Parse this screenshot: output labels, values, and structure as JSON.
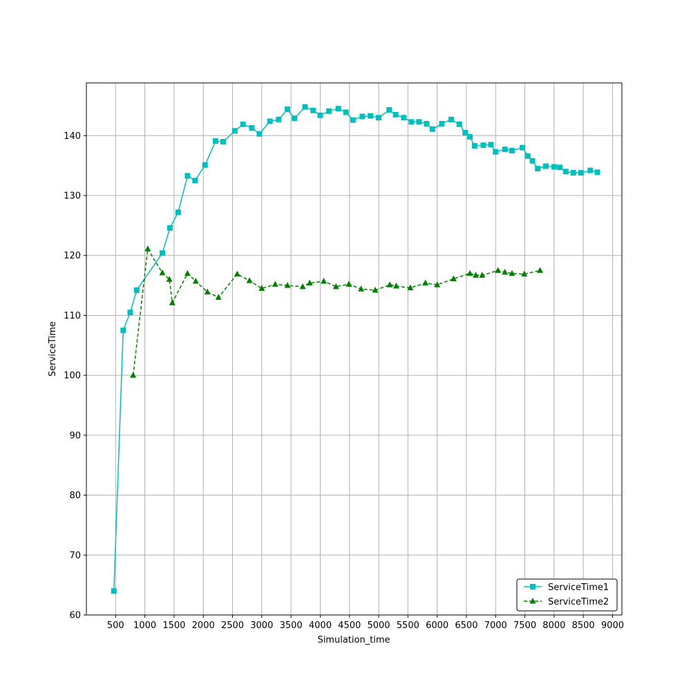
{
  "chart_data": {
    "type": "line",
    "title": "",
    "xlabel": "Simulation_time",
    "ylabel": "ServiceTime",
    "xlim": [
      0,
      9160
    ],
    "ylim": [
      60,
      148.8
    ],
    "xticks": [
      500,
      1000,
      1500,
      2000,
      2500,
      3000,
      3500,
      4000,
      4500,
      5000,
      5500,
      6000,
      6500,
      7000,
      7500,
      8000,
      8500,
      9000
    ],
    "yticks": [
      60,
      70,
      80,
      90,
      100,
      110,
      120,
      130,
      140
    ],
    "grid": true,
    "legend_position": "lower-right",
    "series": [
      {
        "name": "ServiceTime1",
        "color": "#00bfbf",
        "line_style": "solid",
        "marker": "square",
        "points": [
          [
            470,
            64.0
          ],
          [
            630,
            107.5
          ],
          [
            750,
            110.5
          ],
          [
            860,
            114.2
          ],
          [
            1300,
            120.4
          ],
          [
            1430,
            124.6
          ],
          [
            1570,
            127.2
          ],
          [
            1730,
            133.3
          ],
          [
            1860,
            132.5
          ],
          [
            2030,
            135.1
          ],
          [
            2210,
            139.1
          ],
          [
            2340,
            139.0
          ],
          [
            2540,
            140.8
          ],
          [
            2680,
            141.9
          ],
          [
            2830,
            141.3
          ],
          [
            2960,
            140.3
          ],
          [
            3140,
            142.4
          ],
          [
            3290,
            142.7
          ],
          [
            3440,
            144.4
          ],
          [
            3560,
            142.9
          ],
          [
            3740,
            144.8
          ],
          [
            3880,
            144.2
          ],
          [
            4000,
            143.4
          ],
          [
            4150,
            144.1
          ],
          [
            4310,
            144.5
          ],
          [
            4440,
            143.9
          ],
          [
            4560,
            142.6
          ],
          [
            4720,
            143.2
          ],
          [
            4860,
            143.3
          ],
          [
            5000,
            143.0
          ],
          [
            5180,
            144.3
          ],
          [
            5290,
            143.5
          ],
          [
            5430,
            143.0
          ],
          [
            5560,
            142.3
          ],
          [
            5690,
            142.3
          ],
          [
            5820,
            142.0
          ],
          [
            5920,
            141.1
          ],
          [
            6080,
            142.0
          ],
          [
            6240,
            142.7
          ],
          [
            6380,
            141.9
          ],
          [
            6480,
            140.5
          ],
          [
            6560,
            139.8
          ],
          [
            6640,
            138.3
          ],
          [
            6790,
            138.4
          ],
          [
            6920,
            138.5
          ],
          [
            7000,
            137.3
          ],
          [
            7160,
            137.7
          ],
          [
            7280,
            137.5
          ],
          [
            7460,
            138.0
          ],
          [
            7550,
            136.6
          ],
          [
            7630,
            135.8
          ],
          [
            7720,
            134.5
          ],
          [
            7860,
            134.9
          ],
          [
            8000,
            134.8
          ],
          [
            8100,
            134.7
          ],
          [
            8200,
            134.0
          ],
          [
            8330,
            133.8
          ],
          [
            8460,
            133.8
          ],
          [
            8620,
            134.2
          ],
          [
            8740,
            133.9
          ]
        ]
      },
      {
        "name": "ServiceTime2",
        "color": "#008000",
        "line_style": "dashed",
        "marker": "triangle",
        "points": [
          [
            800,
            100.0
          ],
          [
            1050,
            121.1
          ],
          [
            1300,
            117.1
          ],
          [
            1420,
            116.0
          ],
          [
            1470,
            112.1
          ],
          [
            1730,
            117.0
          ],
          [
            1870,
            115.7
          ],
          [
            2070,
            113.9
          ],
          [
            2260,
            113.0
          ],
          [
            2580,
            116.9
          ],
          [
            2790,
            115.8
          ],
          [
            3000,
            114.5
          ],
          [
            3230,
            115.2
          ],
          [
            3440,
            115.0
          ],
          [
            3700,
            114.8
          ],
          [
            3820,
            115.4
          ],
          [
            4060,
            115.7
          ],
          [
            4270,
            114.8
          ],
          [
            4490,
            115.2
          ],
          [
            4700,
            114.4
          ],
          [
            4940,
            114.2
          ],
          [
            5190,
            115.1
          ],
          [
            5300,
            114.9
          ],
          [
            5540,
            114.6
          ],
          [
            5800,
            115.4
          ],
          [
            6000,
            115.1
          ],
          [
            6280,
            116.1
          ],
          [
            6560,
            117.0
          ],
          [
            6660,
            116.7
          ],
          [
            6770,
            116.7
          ],
          [
            7040,
            117.5
          ],
          [
            7160,
            117.2
          ],
          [
            7280,
            117.0
          ],
          [
            7490,
            116.9
          ],
          [
            7760,
            117.5
          ]
        ]
      }
    ]
  }
}
